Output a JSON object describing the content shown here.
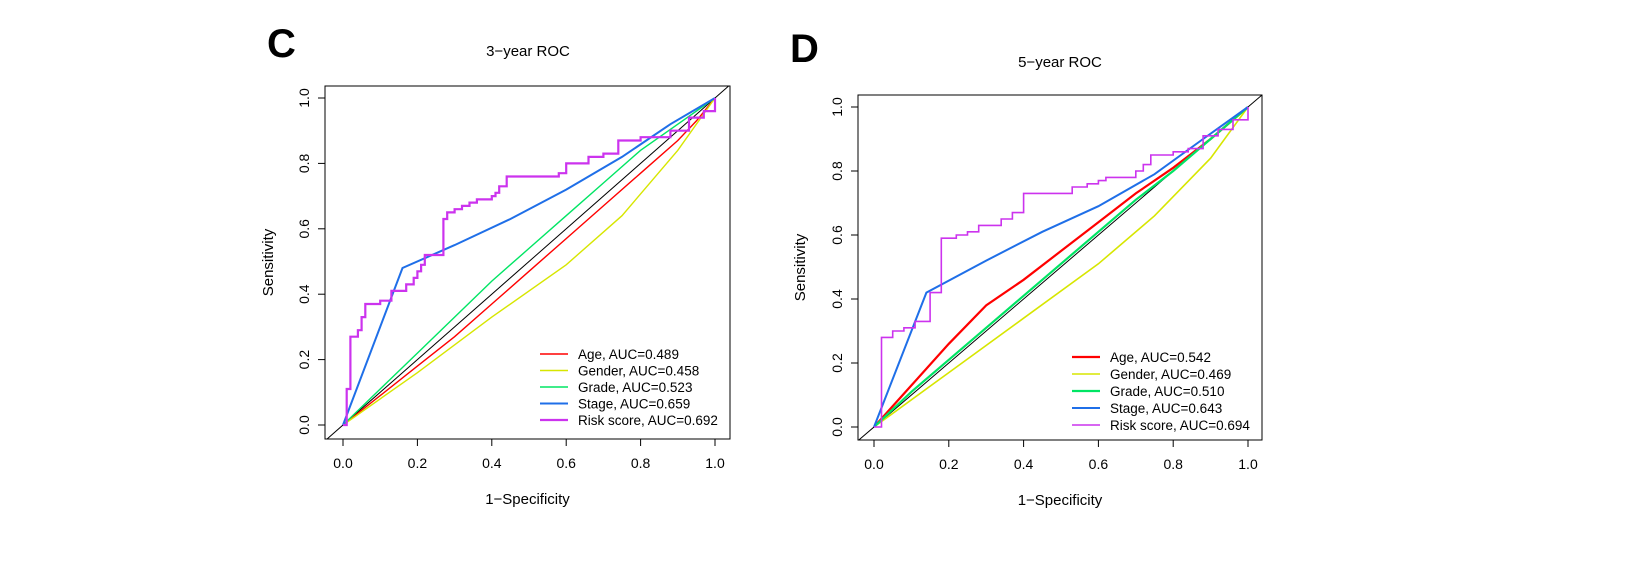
{
  "chart_data": [
    {
      "type": "line",
      "panel_label": "C",
      "title": "3−year ROC",
      "xlabel": "1−Specificity",
      "ylabel": "Sensitivity",
      "xlim": [
        0,
        1
      ],
      "ylim": [
        0,
        1
      ],
      "xticks": [
        "0.0",
        "0.2",
        "0.4",
        "0.6",
        "0.8",
        "1.0"
      ],
      "yticks": [
        "0.0",
        "0.2",
        "0.4",
        "0.6",
        "0.8",
        "1.0"
      ],
      "legend_position": "bottom-right",
      "grid": false,
      "series": [
        {
          "name": "Age, AUC=0.489",
          "color": "#ff0000",
          "width": 1.4,
          "x": [
            0,
            0.1,
            0.2,
            0.3,
            0.4,
            0.5,
            0.6,
            0.7,
            0.8,
            0.9,
            0.95,
            1.0
          ],
          "y": [
            0,
            0.09,
            0.18,
            0.27,
            0.37,
            0.47,
            0.57,
            0.67,
            0.77,
            0.87,
            0.93,
            1.0
          ]
        },
        {
          "name": "Gender, AUC=0.458",
          "color": "#d7e600",
          "width": 1.4,
          "x": [
            0,
            0.2,
            0.4,
            0.6,
            0.75,
            0.9,
            1.0
          ],
          "y": [
            0,
            0.16,
            0.33,
            0.49,
            0.64,
            0.84,
            1.0
          ]
        },
        {
          "name": "Grade, AUC=0.523",
          "color": "#00e564",
          "width": 1.4,
          "x": [
            0,
            0.1,
            0.2,
            0.3,
            0.4,
            0.5,
            0.6,
            0.7,
            0.8,
            0.9,
            1.0
          ],
          "y": [
            0,
            0.11,
            0.22,
            0.33,
            0.44,
            0.54,
            0.64,
            0.74,
            0.84,
            0.92,
            1.0
          ]
        },
        {
          "name": "Stage, AUC=0.659",
          "color": "#1f6fe8",
          "width": 2.0,
          "x": [
            0,
            0.16,
            0.3,
            0.45,
            0.6,
            0.75,
            0.88,
            1.0
          ],
          "y": [
            0,
            0.48,
            0.55,
            0.63,
            0.72,
            0.82,
            0.92,
            1.0
          ]
        },
        {
          "name": "Risk score, AUC=0.692",
          "color": "#cc33ee",
          "width": 2.2,
          "step": true,
          "x": [
            0,
            0.01,
            0.02,
            0.04,
            0.05,
            0.06,
            0.08,
            0.1,
            0.13,
            0.15,
            0.17,
            0.19,
            0.2,
            0.21,
            0.22,
            0.23,
            0.25,
            0.27,
            0.28,
            0.3,
            0.32,
            0.34,
            0.36,
            0.38,
            0.4,
            0.41,
            0.42,
            0.44,
            0.5,
            0.54,
            0.58,
            0.6,
            0.66,
            0.7,
            0.74,
            0.8,
            0.84,
            0.88,
            0.93,
            0.97,
            1.0
          ],
          "y": [
            0,
            0.11,
            0.27,
            0.29,
            0.33,
            0.37,
            0.37,
            0.38,
            0.41,
            0.41,
            0.43,
            0.45,
            0.47,
            0.49,
            0.52,
            0.52,
            0.52,
            0.63,
            0.65,
            0.66,
            0.67,
            0.68,
            0.69,
            0.69,
            0.7,
            0.71,
            0.73,
            0.76,
            0.76,
            0.76,
            0.77,
            0.8,
            0.82,
            0.83,
            0.87,
            0.88,
            0.88,
            0.9,
            0.94,
            0.96,
            1.0
          ]
        }
      ]
    },
    {
      "type": "line",
      "panel_label": "D",
      "title": "5−year ROC",
      "xlabel": "1−Specificity",
      "ylabel": "Sensitivity",
      "xlim": [
        0,
        1
      ],
      "ylim": [
        0,
        1
      ],
      "xticks": [
        "0.0",
        "0.2",
        "0.4",
        "0.6",
        "0.8",
        "1.0"
      ],
      "yticks": [
        "0.0",
        "0.2",
        "0.4",
        "0.6",
        "0.8",
        "1.0"
      ],
      "legend_position": "bottom-right",
      "grid": false,
      "series": [
        {
          "name": "Age, AUC=0.542",
          "color": "#ff0000",
          "width": 2.2,
          "x": [
            0,
            0.1,
            0.2,
            0.3,
            0.4,
            0.5,
            0.6,
            0.7,
            0.8,
            0.9,
            1.0
          ],
          "y": [
            0,
            0.13,
            0.26,
            0.38,
            0.46,
            0.55,
            0.64,
            0.73,
            0.81,
            0.9,
            1.0
          ]
        },
        {
          "name": "Gender, AUC=0.469",
          "color": "#d7e600",
          "width": 1.6,
          "x": [
            0,
            0.2,
            0.4,
            0.6,
            0.75,
            0.9,
            1.0
          ],
          "y": [
            0,
            0.17,
            0.34,
            0.51,
            0.66,
            0.84,
            1.0
          ]
        },
        {
          "name": "Grade, AUC=0.510",
          "color": "#00e564",
          "width": 2.2,
          "x": [
            0,
            0.1,
            0.2,
            0.3,
            0.4,
            0.5,
            0.6,
            0.7,
            0.8,
            0.9,
            1.0
          ],
          "y": [
            0,
            0.11,
            0.21,
            0.31,
            0.41,
            0.51,
            0.61,
            0.71,
            0.8,
            0.9,
            1.0
          ]
        },
        {
          "name": "Stage, AUC=0.643",
          "color": "#1f6fe8",
          "width": 2.0,
          "x": [
            0,
            0.14,
            0.3,
            0.45,
            0.6,
            0.75,
            0.88,
            1.0
          ],
          "y": [
            0,
            0.42,
            0.52,
            0.61,
            0.69,
            0.79,
            0.9,
            1.0
          ]
        },
        {
          "name": "Risk score, AUC=0.694",
          "color": "#cc33ee",
          "width": 1.6,
          "step": true,
          "x": [
            0,
            0.02,
            0.05,
            0.08,
            0.11,
            0.15,
            0.18,
            0.22,
            0.25,
            0.28,
            0.34,
            0.37,
            0.4,
            0.45,
            0.5,
            0.53,
            0.57,
            0.6,
            0.62,
            0.66,
            0.7,
            0.72,
            0.74,
            0.8,
            0.84,
            0.88,
            0.92,
            0.96,
            1.0
          ],
          "y": [
            0,
            0.28,
            0.3,
            0.31,
            0.33,
            0.42,
            0.59,
            0.6,
            0.61,
            0.63,
            0.65,
            0.67,
            0.73,
            0.73,
            0.73,
            0.75,
            0.76,
            0.77,
            0.78,
            0.78,
            0.8,
            0.82,
            0.85,
            0.86,
            0.87,
            0.91,
            0.93,
            0.96,
            1.0
          ]
        }
      ]
    }
  ]
}
